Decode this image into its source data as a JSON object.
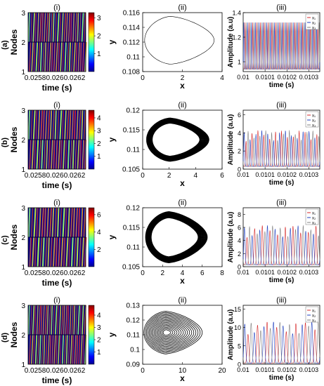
{
  "chart_data": [
    {
      "row_label": "(a)",
      "panels": [
        {
          "type": "heatmap",
          "label": "(i)",
          "ylabel": "Nodes",
          "xlabel": "time (s)",
          "x_ticks": [
            "0.0258",
            "0.026",
            "0.0262"
          ],
          "y_ticks": [
            "1",
            "2",
            "3"
          ],
          "colorbar_ticks": [
            "1",
            "2",
            "3"
          ],
          "colorbar_max": 3.3,
          "stripes": 26
        },
        {
          "type": "line",
          "label": "(ii)",
          "xlabel": "x",
          "ylabel": "y",
          "xlim": [
            0,
            4
          ],
          "ylim": [
            0.108,
            0.116
          ],
          "x_ticks": [
            "0",
            "2",
            "4"
          ],
          "y_ticks": [
            "0.108",
            "0.11",
            "0.112",
            "0.114",
            "0.116"
          ],
          "style": "thin",
          "orbit": {
            "xmin": 0.1,
            "xmax": 3.6,
            "ymin": 0.109,
            "ymax": 0.1155
          }
        },
        {
          "type": "line",
          "label": "(iii)",
          "xlabel": "time (s)",
          "ylabel": "Amplitude (a.u)",
          "xlim": [
            0.01,
            0.01035
          ],
          "ylim": [
            0.92,
            1.4
          ],
          "x_ticks": [
            "0.01",
            "0.0101",
            "0.0102",
            "0.0103"
          ],
          "y_ticks": [
            "1",
            "1.2",
            "1.4"
          ],
          "legend": [
            "x₁",
            "x₂",
            "x₃"
          ],
          "peak": 1.32,
          "base": 0.94,
          "periods": 20
        }
      ]
    },
    {
      "row_label": "(b)",
      "panels": [
        {
          "type": "heatmap",
          "label": "(i)",
          "ylabel": "Nodes",
          "xlabel": "time (s)",
          "x_ticks": [
            "0.0258",
            "0.026",
            "0.0262"
          ],
          "y_ticks": [
            "1",
            "2",
            "3"
          ],
          "colorbar_ticks": [
            "1",
            "2",
            "3",
            "4"
          ],
          "colorbar_max": 4.6,
          "stripes": 24
        },
        {
          "type": "line",
          "label": "(ii)",
          "xlabel": "x",
          "ylabel": "y",
          "xlim": [
            0,
            6
          ],
          "ylim": [
            0.105,
            0.12
          ],
          "x_ticks": [
            "0",
            "2",
            "4",
            "6"
          ],
          "y_ticks": [
            "0.105",
            "0.11",
            "0.115",
            "0.12"
          ],
          "style": "band",
          "orbit": {
            "xmin": 0.3,
            "xmax": 5.0,
            "ymin": 0.107,
            "ymax": 0.118
          }
        },
        {
          "type": "line",
          "label": "(iii)",
          "xlabel": "time (s)",
          "ylabel": "Amplitude (a.u)",
          "xlim": [
            0.01,
            0.01035
          ],
          "ylim": [
            0,
            6.5
          ],
          "x_ticks": [
            "0.01",
            "0.0101",
            "0.0102",
            "0.0103"
          ],
          "y_ticks": [
            "0",
            "2",
            "4",
            "6"
          ],
          "legend": [
            "x₁",
            "x₂",
            "x₃"
          ],
          "peak": 4.3,
          "base": 0.3,
          "periods": 13
        }
      ]
    },
    {
      "row_label": "(c)",
      "panels": [
        {
          "type": "heatmap",
          "label": "(i)",
          "ylabel": "Nodes",
          "xlabel": "time (s)",
          "x_ticks": [
            "0.0258",
            "0.026",
            "0.0262"
          ],
          "y_ticks": [
            "1",
            "2",
            "3"
          ],
          "colorbar_ticks": [
            "2",
            "4",
            "6"
          ],
          "colorbar_max": 6.8,
          "stripes": 22
        },
        {
          "type": "line",
          "label": "(ii)",
          "xlabel": "x",
          "ylabel": "y",
          "xlim": [
            0,
            8
          ],
          "ylim": [
            0.105,
            0.12
          ],
          "x_ticks": [
            "0",
            "2",
            "4",
            "6",
            "8"
          ],
          "y_ticks": [
            "0.105",
            "0.11",
            "0.115",
            "0.12"
          ],
          "style": "band",
          "orbit": {
            "xmin": 0.3,
            "xmax": 6.5,
            "ymin": 0.106,
            "ymax": 0.119
          }
        },
        {
          "type": "line",
          "label": "(iii)",
          "xlabel": "time (s)",
          "ylabel": "Amplitude (a.u)",
          "xlim": [
            0.01,
            0.01035
          ],
          "ylim": [
            0,
            9
          ],
          "x_ticks": [
            "0.01",
            "0.0101",
            "0.0102",
            "0.0103"
          ],
          "y_ticks": [
            "0",
            "2",
            "4",
            "6",
            "8"
          ],
          "legend": [
            "x₁",
            "x₂",
            "x₃"
          ],
          "peak": 6.3,
          "base": 0.3,
          "periods": 10
        }
      ]
    },
    {
      "row_label": "(d)",
      "panels": [
        {
          "type": "heatmap",
          "label": "(i)",
          "ylabel": "Nodes",
          "xlabel": "time (s)",
          "x_ticks": [
            "0.0258",
            "0.026",
            "0.0262"
          ],
          "y_ticks": [
            "1",
            "2",
            "3"
          ],
          "colorbar_ticks": [
            "1",
            "2",
            "3",
            "4"
          ],
          "colorbar_max": 4.8,
          "stripes": 28
        },
        {
          "type": "line",
          "label": "(ii)",
          "xlabel": "x",
          "ylabel": "y",
          "xlim": [
            0,
            20
          ],
          "ylim": [
            0.09,
            0.13
          ],
          "x_ticks": [
            "0",
            "10",
            "20"
          ],
          "y_ticks": [
            "0.09",
            "0.1",
            "0.11",
            "0.12",
            "0.13"
          ],
          "style": "rings",
          "orbit": {
            "xmin": 0.3,
            "xmax": 15.0,
            "ymin": 0.097,
            "ymax": 0.126
          }
        },
        {
          "type": "line",
          "label": "(iii)",
          "xlabel": "time (s)",
          "ylabel": "Amplitude (a.u)",
          "xlim": [
            0.01,
            0.01035
          ],
          "ylim": [
            0,
            16
          ],
          "x_ticks": [
            "0.01",
            "0.0101",
            "0.0102",
            "0.0103"
          ],
          "y_ticks": [
            "0",
            "5",
            "10",
            "15"
          ],
          "legend": [
            "x₁",
            "x₂",
            "x₃"
          ],
          "peak": 11.5,
          "base": 0.3,
          "periods": 8
        }
      ]
    }
  ],
  "colors": {
    "x1": "#d62728",
    "x2": "#1f3fbf",
    "x3": "#7f7f7f",
    "orbit": "#000000"
  }
}
